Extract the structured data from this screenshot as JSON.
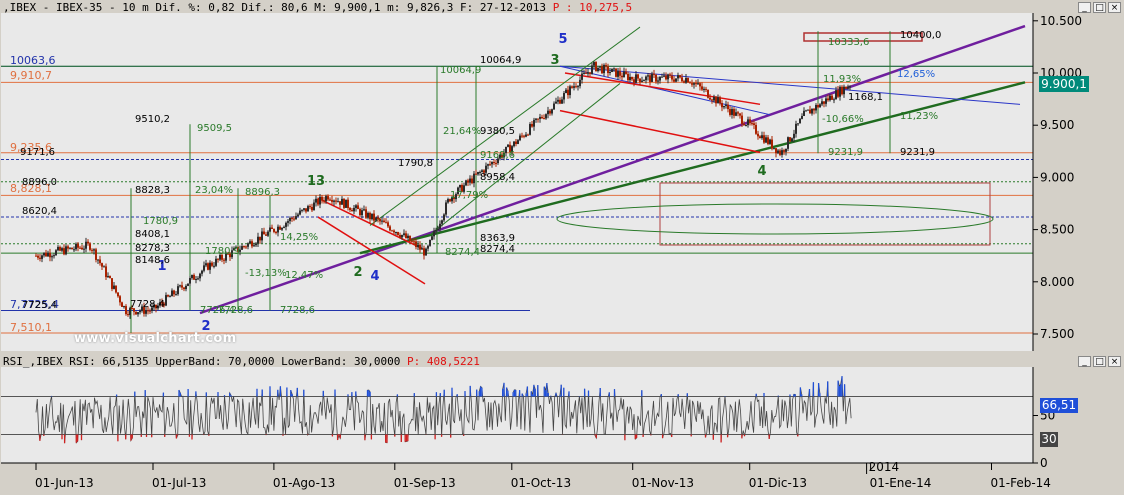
{
  "main_header": {
    "prefix": ",IBEX - IBEX-35 -  10 m Dif. %: 0,82 Dif.: 80,6 M: 9,900,1 m: 9,826,3 F: 27-12-2013 ",
    "price_label": "P : 10,275,5"
  },
  "rsi_header": {
    "prefix": "RSI_,IBEX RSI: 66,5135 UpperBand: 70,0000 LowerBand: 30,0000 ",
    "price_label": "P: 408,5221"
  },
  "window_buttons": [
    "_",
    "□",
    "×"
  ],
  "watermark": "www.visualchart.com",
  "last_price_tag": "9.900,1",
  "rsi_tags": {
    "value": "66,51",
    "lower": "30"
  },
  "price_axis_ticks": [
    "10.500",
    "10.000",
    "9.500",
    "9.000",
    "8.500",
    "8.000",
    "7.500"
  ],
  "rsi_axis_ticks": [
    "50",
    "0"
  ],
  "time_axis": {
    "year_label": "2014",
    "ticks": [
      "01-Jun-13",
      "01-Jul-13",
      "01-Ago-13",
      "01-Sep-13",
      "01-Oct-13",
      "01-Nov-13",
      "01-Dic-13",
      "01-Ene-14",
      "01-Feb-14"
    ]
  },
  "left_edge_labels": [
    "10063,6",
    "9,910,7",
    "9,235,6",
    "8,828,1",
    "7,7725,4",
    "7,510,1"
  ],
  "wave_labels": [
    "1",
    "2",
    "13",
    "2",
    "4",
    "3",
    "5",
    "4"
  ],
  "level_labels": [
    "10064,9",
    "10064,9",
    "9510,2",
    "9509,5",
    "9171,6",
    "8896,0",
    "8828,3",
    "23,04%",
    "8896,3",
    "8620,4",
    "1780,9",
    "8408,1",
    "8278,3",
    "8148,6",
    "1780,9",
    "9380,5",
    "21,64%",
    "1790,8",
    "9169,6",
    "8958,4",
    "17,79%",
    "8363,9",
    "8274,4",
    "8274,4",
    "14,25%",
    "12,47%",
    "-13,13%",
    "7728,6",
    "7728,6",
    "7725,4",
    "7728,4",
    "7726,4",
    "10333,6",
    "10400,0",
    "11,93%",
    "12,65%",
    "1168,1",
    "-10,66%",
    "11,23%",
    "9231,9",
    "9231,9"
  ],
  "colors": {
    "background": "#e9e9e9",
    "candle_up": "#2b2b2b",
    "candle_down": "#aa2200",
    "upper_channel": "#6f1f9e",
    "lower_trend": "#1f6b1f",
    "falling_channel": "#e01010",
    "upper_resistance": "#2a36c8",
    "level_orange": "#e07040",
    "level_blue": "#2233aa",
    "level_green": "#2a7a2a",
    "rsi_blue": "#1f4fd8",
    "rsi_red": "#d02020",
    "price_tag": "#008a7a"
  },
  "chart_data": [
    {
      "type": "line",
      "title": "IBEX-35 10 m",
      "series": [
        {
          "name": "IBEX",
          "x": [
            "01-Jun-13",
            "15-Jun-13",
            "24-Jun-13",
            "01-Jul-13",
            "15-Jul-13",
            "01-Ago-13",
            "15-Ago-13",
            "01-Sep-13",
            "09-Sep-13",
            "15-Sep-13",
            "01-Oct-13",
            "22-Oct-13",
            "01-Nov-13",
            "15-Nov-13",
            "01-Dic-13",
            "09-Dic-13",
            "15-Dic-13",
            "27-Dic-13"
          ],
          "values": [
            8250,
            8350,
            7726,
            7728,
            8150,
            8500,
            8828,
            8500,
            8274,
            8800,
            9300,
            10064,
            9950,
            9950,
            9500,
            9231,
            9600,
            9900
          ]
        }
      ],
      "ylim": [
        7350,
        10550
      ],
      "y_ticks": [
        7500,
        8000,
        8500,
        9000,
        9500,
        10000,
        10500
      ]
    },
    {
      "type": "line",
      "title": "RSI",
      "series": [
        {
          "name": "RSI",
          "x": [
            "01-Jun-13",
            "01-Jul-13",
            "01-Ago-13",
            "01-Sep-13",
            "01-Oct-13",
            "01-Nov-13",
            "01-Dic-13",
            "27-Dic-13"
          ],
          "values": [
            45,
            50,
            55,
            48,
            60,
            50,
            45,
            66.51
          ]
        }
      ],
      "bands": {
        "upper": 70,
        "lower": 30
      },
      "ylim": [
        0,
        100
      ],
      "y_ticks": [
        0,
        50
      ]
    }
  ]
}
